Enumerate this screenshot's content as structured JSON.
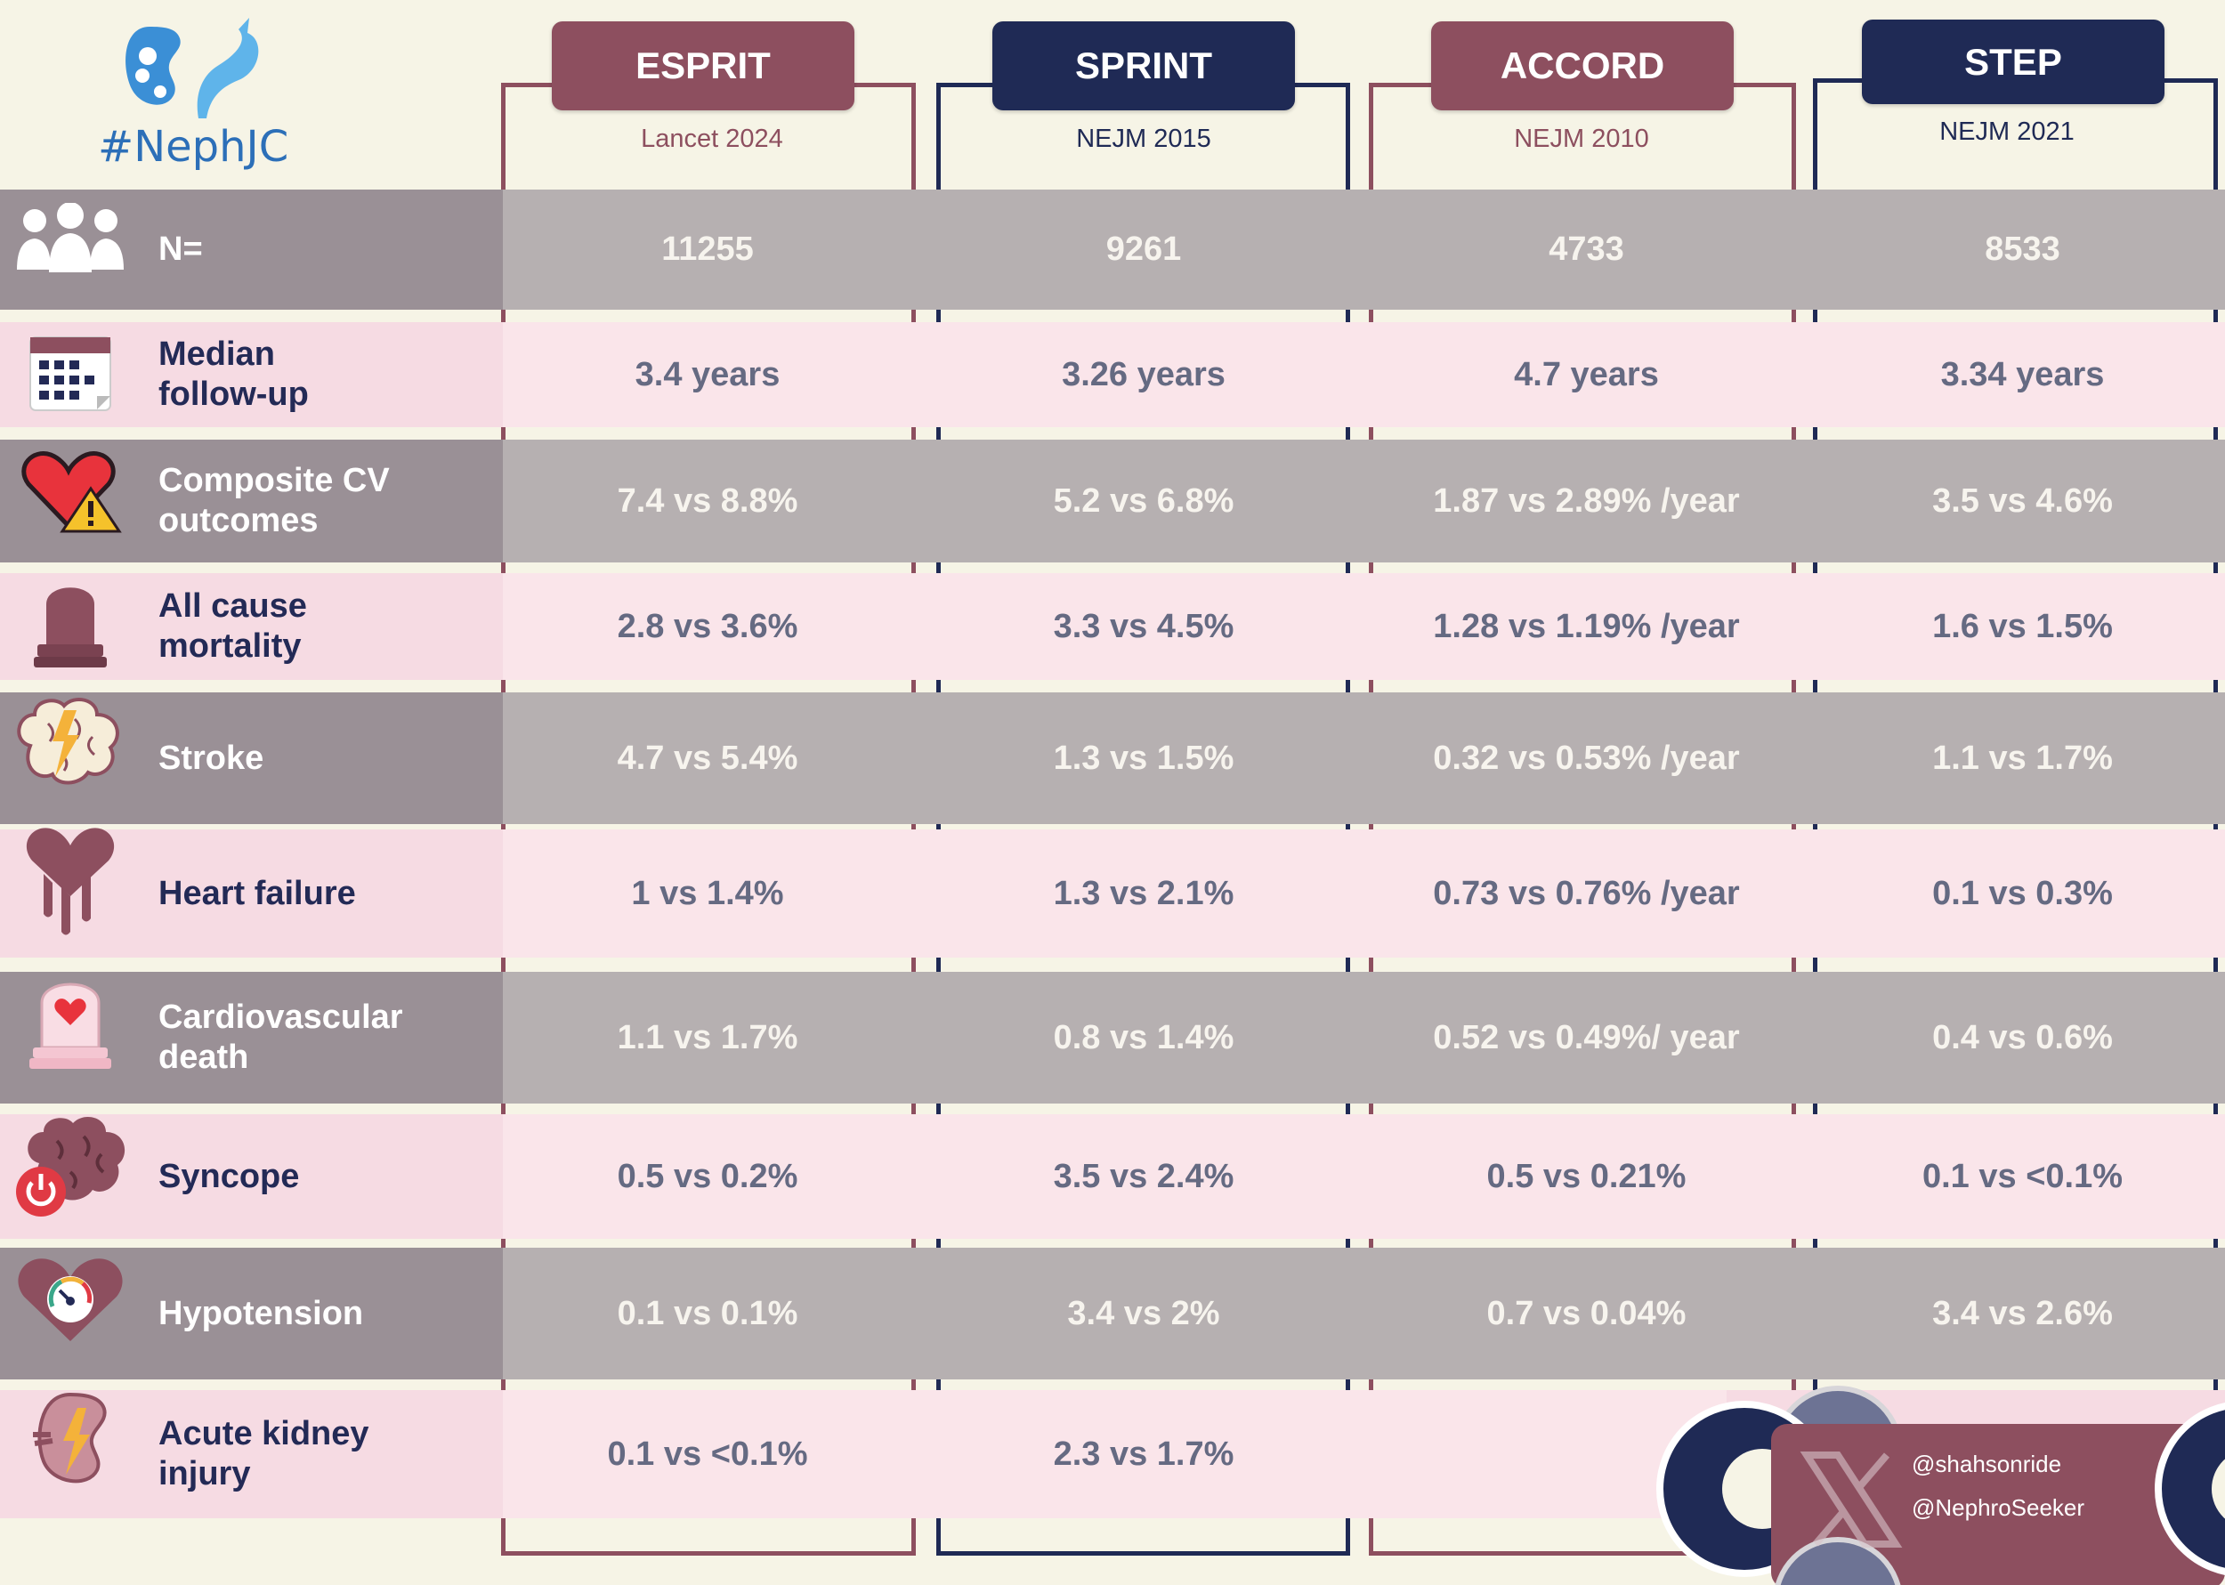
{
  "logo": {
    "text": "#NephJC"
  },
  "columns": [
    {
      "name": "ESPRIT",
      "source": "Lancet 2024"
    },
    {
      "name": "SPRINT",
      "source": "NEJM 2015"
    },
    {
      "name": "ACCORD",
      "source": "NEJM 2010"
    },
    {
      "name": "STEP",
      "source": "NEJM 2021"
    }
  ],
  "rows": [
    {
      "label": "N=",
      "icon": "people-icon",
      "values": [
        "11255",
        "9261",
        "4733",
        "8533"
      ]
    },
    {
      "label": "Median follow-up",
      "icon": "calendar-icon",
      "values": [
        "3.4 years",
        "3.26 years",
        "4.7 years",
        "3.34 years"
      ]
    },
    {
      "label": "Composite CV outcomes",
      "icon": "heart-warning-icon",
      "values": [
        "7.4 vs 8.8%",
        "5.2 vs 6.8%",
        "1.87 vs 2.89% /year",
        "3.5 vs 4.6%"
      ]
    },
    {
      "label": "All cause mortality",
      "icon": "tombstone-icon",
      "values": [
        "2.8 vs 3.6%",
        "3.3 vs 4.5%",
        "1.28 vs 1.19% /year",
        "1.6 vs 1.5%"
      ]
    },
    {
      "label": "Stroke",
      "icon": "brain-lightning-icon",
      "values": [
        "4.7 vs 5.4%",
        "1.3 vs 1.5%",
        "0.32 vs 0.53% /year",
        "1.1 vs 1.7%"
      ]
    },
    {
      "label": "Heart failure",
      "icon": "melting-heart-icon",
      "values": [
        "1 vs 1.4%",
        "1.3 vs 2.1%",
        "0.73 vs 0.76% /year",
        "0.1 vs 0.3%"
      ]
    },
    {
      "label": "Cardiovascular death",
      "icon": "heart-grave-icon",
      "values": [
        "1.1 vs 1.7%",
        "0.8 vs 1.4%",
        "0.52 vs 0.49%/ year",
        "0.4 vs 0.6%"
      ]
    },
    {
      "label": "Syncope",
      "icon": "brain-power-icon",
      "values": [
        "0.5 vs 0.2%",
        "3.5 vs 2.4%",
        "0.5 vs 0.21%",
        "0.1 vs <0.1%"
      ]
    },
    {
      "label": "Hypotension",
      "icon": "heart-gauge-icon",
      "values": [
        "0.1 vs 0.1%",
        "3.4 vs 2%",
        "0.7 vs 0.04%",
        "3.4 vs 2.6%"
      ]
    },
    {
      "label": "Acute kidney injury",
      "icon": "kidney-lightning-icon",
      "values": [
        "0.1 vs <0.1%",
        "2.3 vs 1.7%",
        "",
        ""
      ]
    }
  ],
  "credits": {
    "handle1": "@shahsonride",
    "handle2": "@NephroSeeker",
    "icon": "x-logo-icon"
  },
  "colors": {
    "maroon": "#8d4f5f",
    "navy": "#1f2a55",
    "background": "#f6f4e6"
  }
}
